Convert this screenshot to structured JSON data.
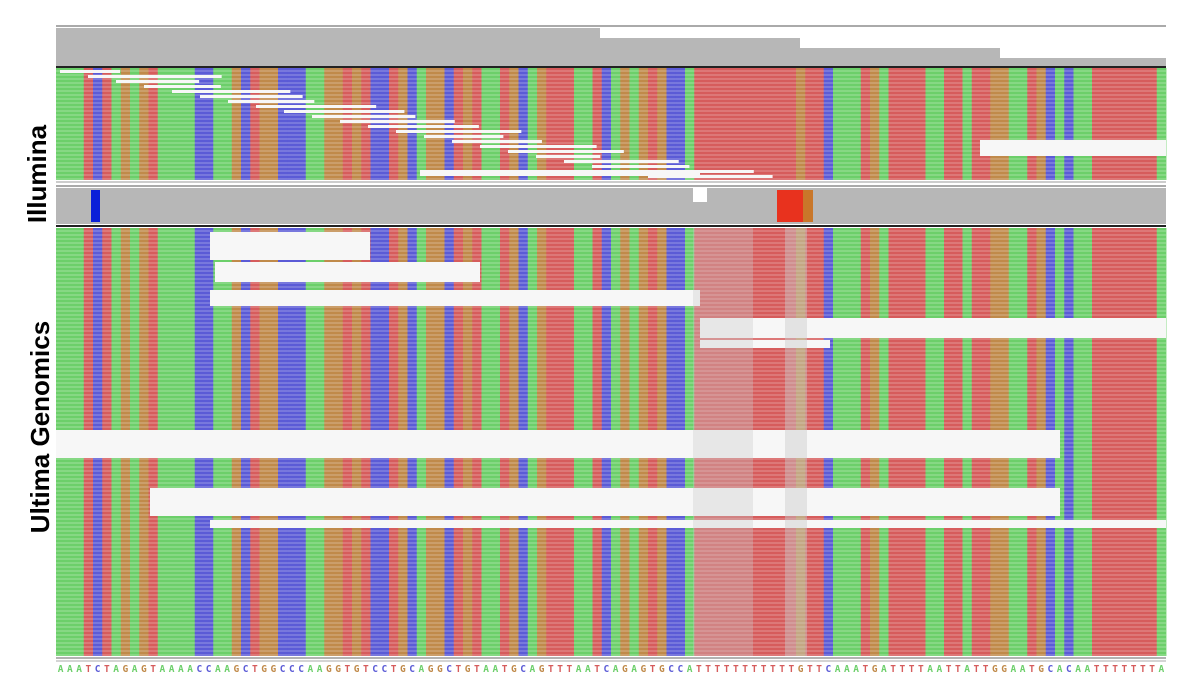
{
  "tracks": [
    {
      "label": "Illumina"
    },
    {
      "label": "Ultima Genomics"
    }
  ],
  "reference_sequence": "AAATCTAGAGTAAAACCAAGCTGGCCCAAGGTGTCCTGCAGGCTGTAATGCAGTTTAATCAGAGTGCCATTTTTTTTTTTGTTCAAATGATTTTAATTATTGGAATGCACAATTTTTTTA",
  "base_colors": {
    "A": "#6ccf6a",
    "C": "#5b5bd6",
    "G": "#c08a4a",
    "T": "#d65c5c"
  },
  "coverage_colors": {
    "background": "#b7b7b7",
    "mismatch_C": "#0a1fd8",
    "mismatch_T": "#e8321e",
    "mismatch_G": "#c9772a"
  }
}
